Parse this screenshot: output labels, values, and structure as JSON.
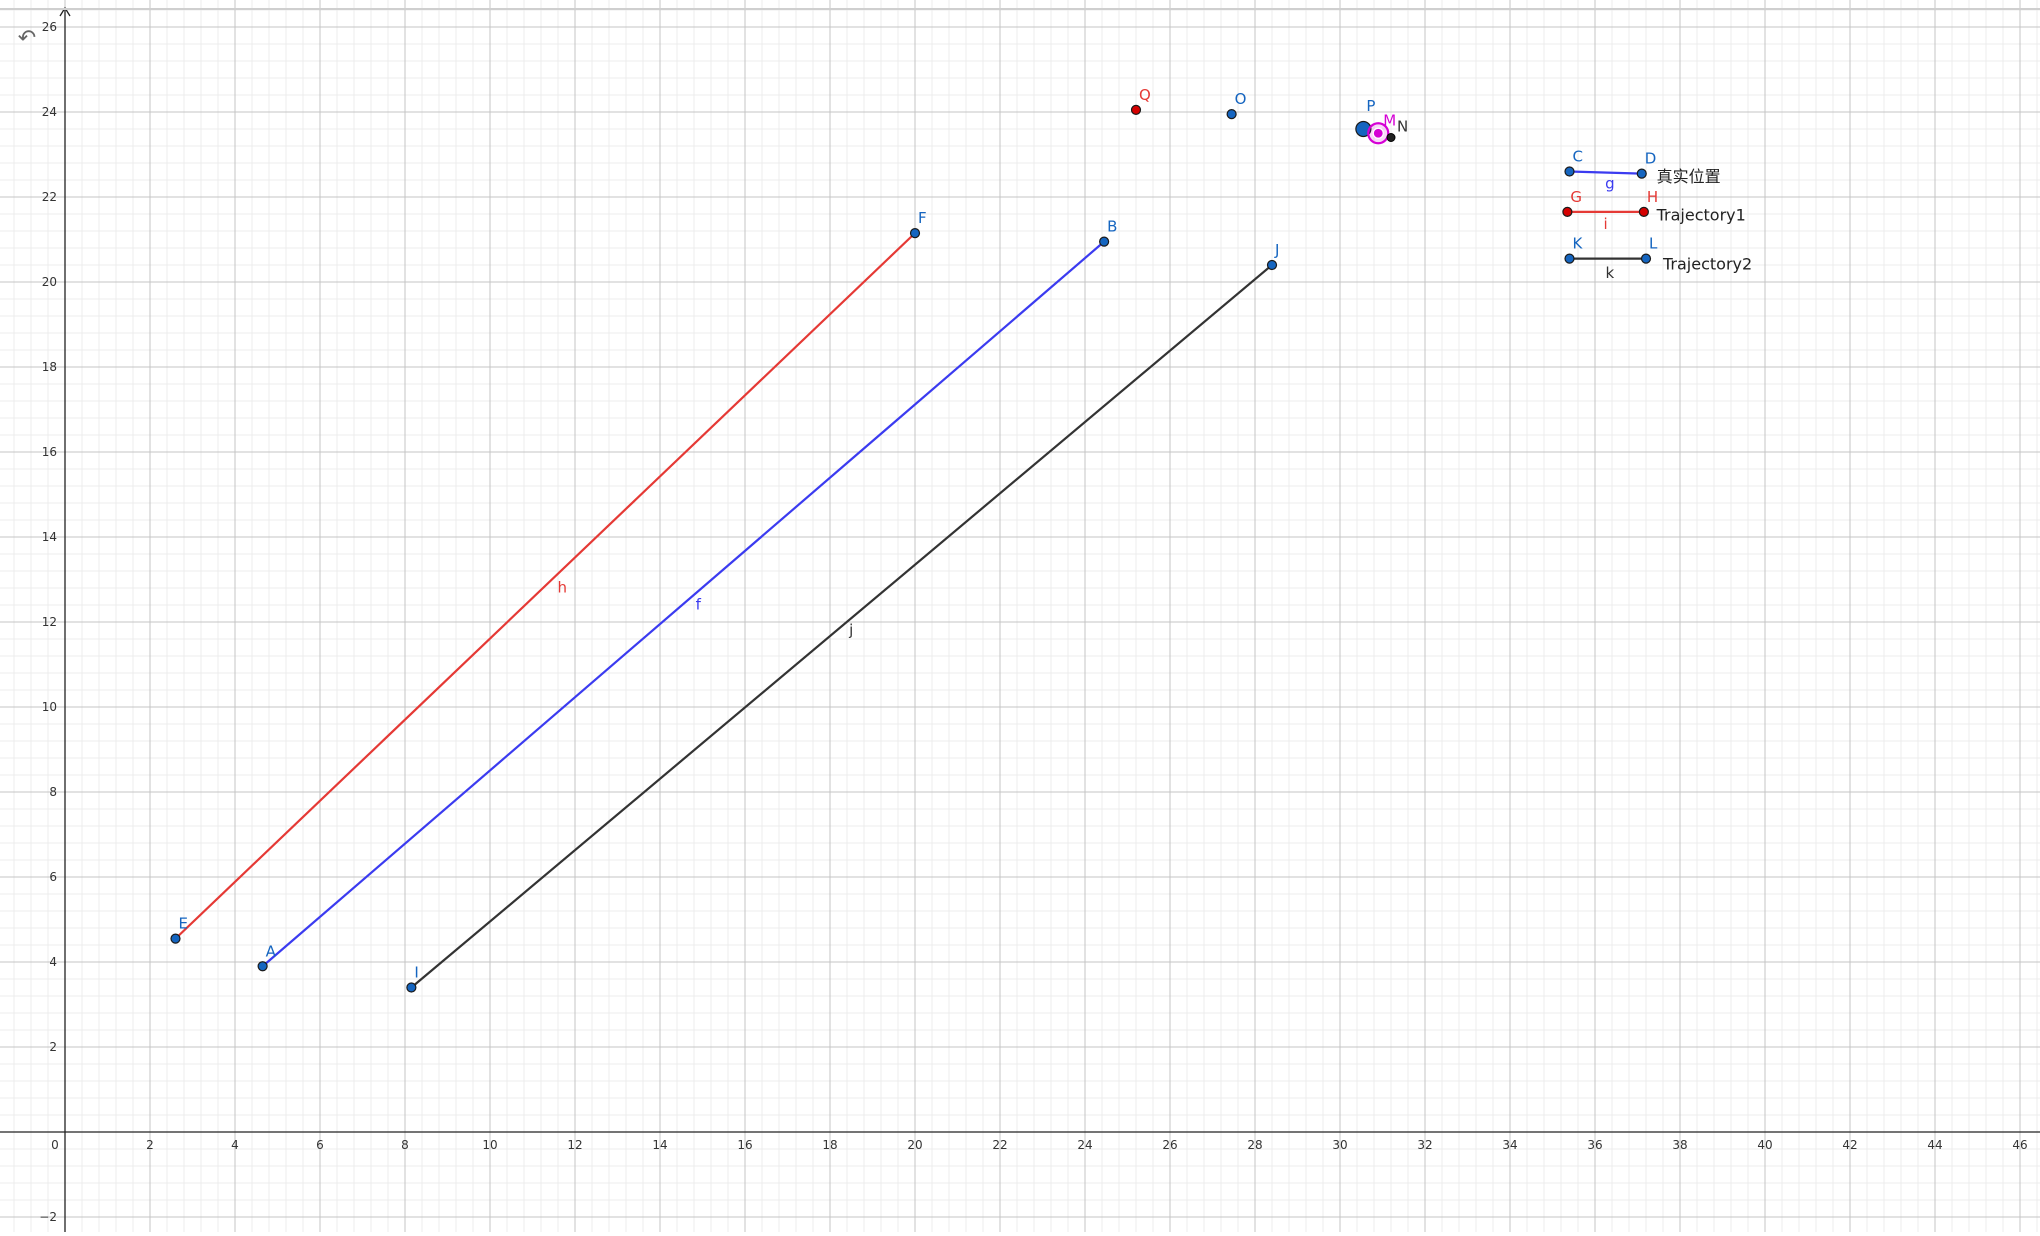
{
  "app": {
    "undo_icon": "undo-icon",
    "undo_glyph": "↶"
  },
  "axes": {
    "x_range": [
      0,
      47.2
    ],
    "y_range": [
      -2.3,
      26.5
    ],
    "x_ticks": [
      "0",
      "2",
      "4",
      "6",
      "8",
      "10",
      "12",
      "14",
      "16",
      "18",
      "20",
      "22",
      "24",
      "26",
      "28",
      "30",
      "32",
      "34",
      "36",
      "38",
      "40",
      "42",
      "44",
      "46"
    ],
    "y_ticks": [
      "−2",
      "2",
      "4",
      "6",
      "8",
      "10",
      "12",
      "14",
      "16",
      "18",
      "20",
      "22",
      "24",
      "26"
    ],
    "grid": true,
    "major_step": 2,
    "minor_step": 0.4
  },
  "colors": {
    "red": "#e53935",
    "blue": "#3b3bf0",
    "black": "#333333",
    "point_blue": "#1565c0",
    "point_red": "#d50000",
    "magenta": "#d500d5",
    "label_blue": "#1565c0",
    "label_red": "#e53935"
  },
  "points": [
    {
      "name": "E",
      "x": 2.6,
      "y": 4.55,
      "color": "point_blue",
      "label_color": "label_blue",
      "size": 4
    },
    {
      "name": "F",
      "x": 20.0,
      "y": 21.15,
      "color": "point_blue",
      "label_color": "label_blue",
      "size": 4
    },
    {
      "name": "A",
      "x": 4.65,
      "y": 3.9,
      "color": "point_blue",
      "label_color": "label_blue",
      "size": 4
    },
    {
      "name": "B",
      "x": 24.45,
      "y": 20.95,
      "color": "point_blue",
      "label_color": "label_blue",
      "size": 4
    },
    {
      "name": "I",
      "x": 8.15,
      "y": 3.4,
      "color": "point_blue",
      "label_color": "label_blue",
      "size": 4
    },
    {
      "name": "J",
      "x": 28.4,
      "y": 20.4,
      "color": "point_blue",
      "label_color": "label_blue",
      "size": 4
    },
    {
      "name": "Q",
      "x": 25.2,
      "y": 24.05,
      "color": "point_red",
      "label_color": "label_red",
      "size": 4
    },
    {
      "name": "O",
      "x": 27.45,
      "y": 23.95,
      "color": "point_blue",
      "label_color": "label_blue",
      "size": 4
    },
    {
      "name": "P",
      "x": 30.55,
      "y": 23.6,
      "color": "point_blue",
      "label_color": "label_blue",
      "size": 7
    },
    {
      "name": "M",
      "x": 30.9,
      "y": 23.5,
      "color": "magenta",
      "label_color": "magenta",
      "size": 4
    },
    {
      "name": "N",
      "x": 31.2,
      "y": 23.4,
      "color": "black",
      "label_color": "black",
      "size": 4
    },
    {
      "name": "C",
      "x": 35.4,
      "y": 22.6,
      "color": "point_blue",
      "label_color": "label_blue",
      "size": 4
    },
    {
      "name": "D",
      "x": 37.1,
      "y": 22.55,
      "color": "point_blue",
      "label_color": "label_blue",
      "size": 4
    },
    {
      "name": "G",
      "x": 35.35,
      "y": 21.65,
      "color": "point_red",
      "label_color": "label_red",
      "size": 4
    },
    {
      "name": "H",
      "x": 37.15,
      "y": 21.65,
      "color": "point_red",
      "label_color": "label_red",
      "size": 4
    },
    {
      "name": "K",
      "x": 35.4,
      "y": 20.55,
      "color": "point_blue",
      "label_color": "label_blue",
      "size": 4
    },
    {
      "name": "L",
      "x": 37.2,
      "y": 20.55,
      "color": "point_blue",
      "label_color": "label_blue",
      "size": 4
    }
  ],
  "segments": [
    {
      "name": "h",
      "from": "E",
      "to": "F",
      "color": "red",
      "label_x": 11.7,
      "label_y": 12.7
    },
    {
      "name": "f",
      "from": "A",
      "to": "B",
      "color": "blue",
      "label_x": 14.9,
      "label_y": 12.3
    },
    {
      "name": "j",
      "from": "I",
      "to": "J",
      "color": "black",
      "label_x": 18.5,
      "label_y": 11.7
    },
    {
      "name": "g",
      "from": "C",
      "to": "D",
      "color": "blue",
      "label_x": 36.35,
      "label_y": 22.2
    },
    {
      "name": "i",
      "from": "G",
      "to": "H",
      "color": "red",
      "label_x": 36.25,
      "label_y": 21.25
    },
    {
      "name": "k",
      "from": "K",
      "to": "L",
      "color": "black",
      "label_x": 36.35,
      "label_y": 20.1
    }
  ],
  "legend": [
    {
      "text": "真实位置",
      "x": 37.45,
      "y": 22.35
    },
    {
      "text": "Trajectory1",
      "x": 37.45,
      "y": 21.45
    },
    {
      "text": "Trajectory2",
      "x": 37.6,
      "y": 20.3
    }
  ]
}
